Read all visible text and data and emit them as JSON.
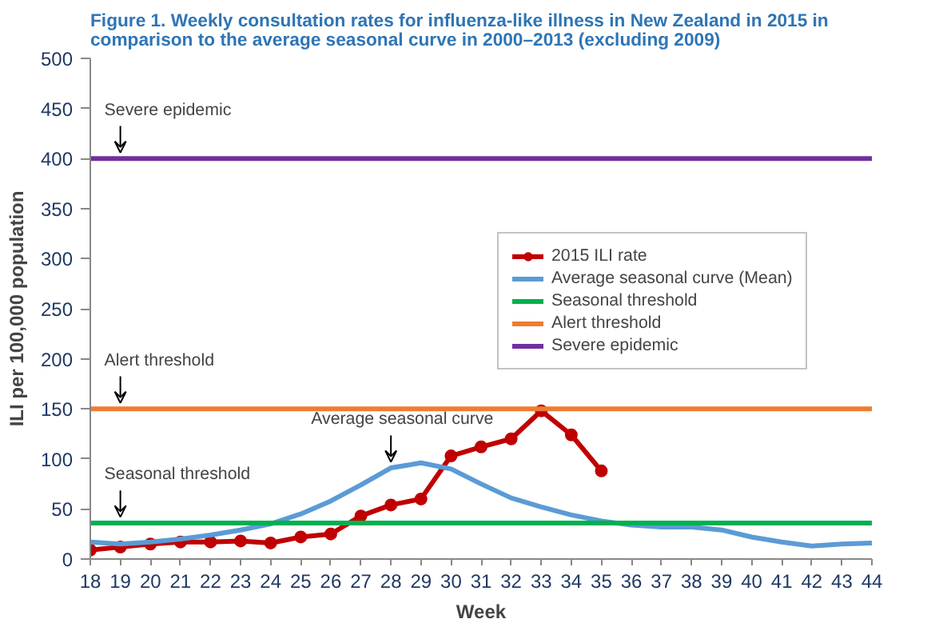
{
  "chart_data": {
    "type": "line",
    "title": "Figure 1. Weekly consultation rates for influenza-like illness in New Zealand in 2015 in comparison to the average seasonal curve in 2000–2013 (excluding 2009)",
    "xlabel": "Week",
    "ylabel": "ILI per 100,000 population",
    "categories": [
      "18",
      "19",
      "20",
      "21",
      "22",
      "23",
      "24",
      "25",
      "26",
      "27",
      "28",
      "29",
      "30",
      "31",
      "32",
      "33",
      "34",
      "35",
      "36",
      "37",
      "38",
      "39",
      "40",
      "41",
      "42",
      "43",
      "44"
    ],
    "ylim": [
      0,
      500
    ],
    "yticks": [
      0,
      50,
      100,
      150,
      200,
      250,
      300,
      350,
      400,
      450,
      500
    ],
    "grid": false,
    "legend": "top right",
    "series": [
      {
        "name": "2015 ILI rate",
        "color": "#c00000",
        "marker": "circle",
        "values": [
          9,
          12,
          15,
          17,
          17,
          18,
          16,
          22,
          25,
          43,
          54,
          60,
          103,
          112,
          120,
          148,
          124,
          88,
          null,
          null,
          null,
          null,
          null,
          null,
          null,
          null,
          null
        ]
      },
      {
        "name": "Average seasonal curve (Mean)",
        "color": "#5b9bd5",
        "marker": "none",
        "values": [
          17,
          15,
          17,
          20,
          24,
          29,
          35,
          45,
          58,
          74,
          91,
          96,
          90,
          75,
          61,
          52,
          44,
          38,
          34,
          32,
          32,
          29,
          22,
          17,
          13,
          15,
          16
        ]
      },
      {
        "name": "Seasonal threshold",
        "color": "#00b050",
        "marker": "none",
        "values": [
          36,
          36,
          36,
          36,
          36,
          36,
          36,
          36,
          36,
          36,
          36,
          36,
          36,
          36,
          36,
          36,
          36,
          36,
          36,
          36,
          36,
          36,
          36,
          36,
          36,
          36,
          36
        ]
      },
      {
        "name": "Alert threshold",
        "color": "#ed7d31",
        "marker": "none",
        "values": [
          150,
          150,
          150,
          150,
          150,
          150,
          150,
          150,
          150,
          150,
          150,
          150,
          150,
          150,
          150,
          150,
          150,
          150,
          150,
          150,
          150,
          150,
          150,
          150,
          150,
          150,
          150
        ]
      },
      {
        "name": "Severe epidemic",
        "color": "#7030a0",
        "marker": "none",
        "values": [
          400,
          400,
          400,
          400,
          400,
          400,
          400,
          400,
          400,
          400,
          400,
          400,
          400,
          400,
          400,
          400,
          400,
          400,
          400,
          400,
          400,
          400,
          400,
          400,
          400,
          400,
          400
        ]
      }
    ],
    "annotations": [
      {
        "text": "Severe epidemic",
        "x": "19",
        "y": 400
      },
      {
        "text": "Alert threshold",
        "x": "19",
        "y": 150
      },
      {
        "text": "Seasonal threshold",
        "x": "19",
        "y": 36
      },
      {
        "text": "Average seasonal curve",
        "x": "28",
        "y": 91
      }
    ]
  }
}
